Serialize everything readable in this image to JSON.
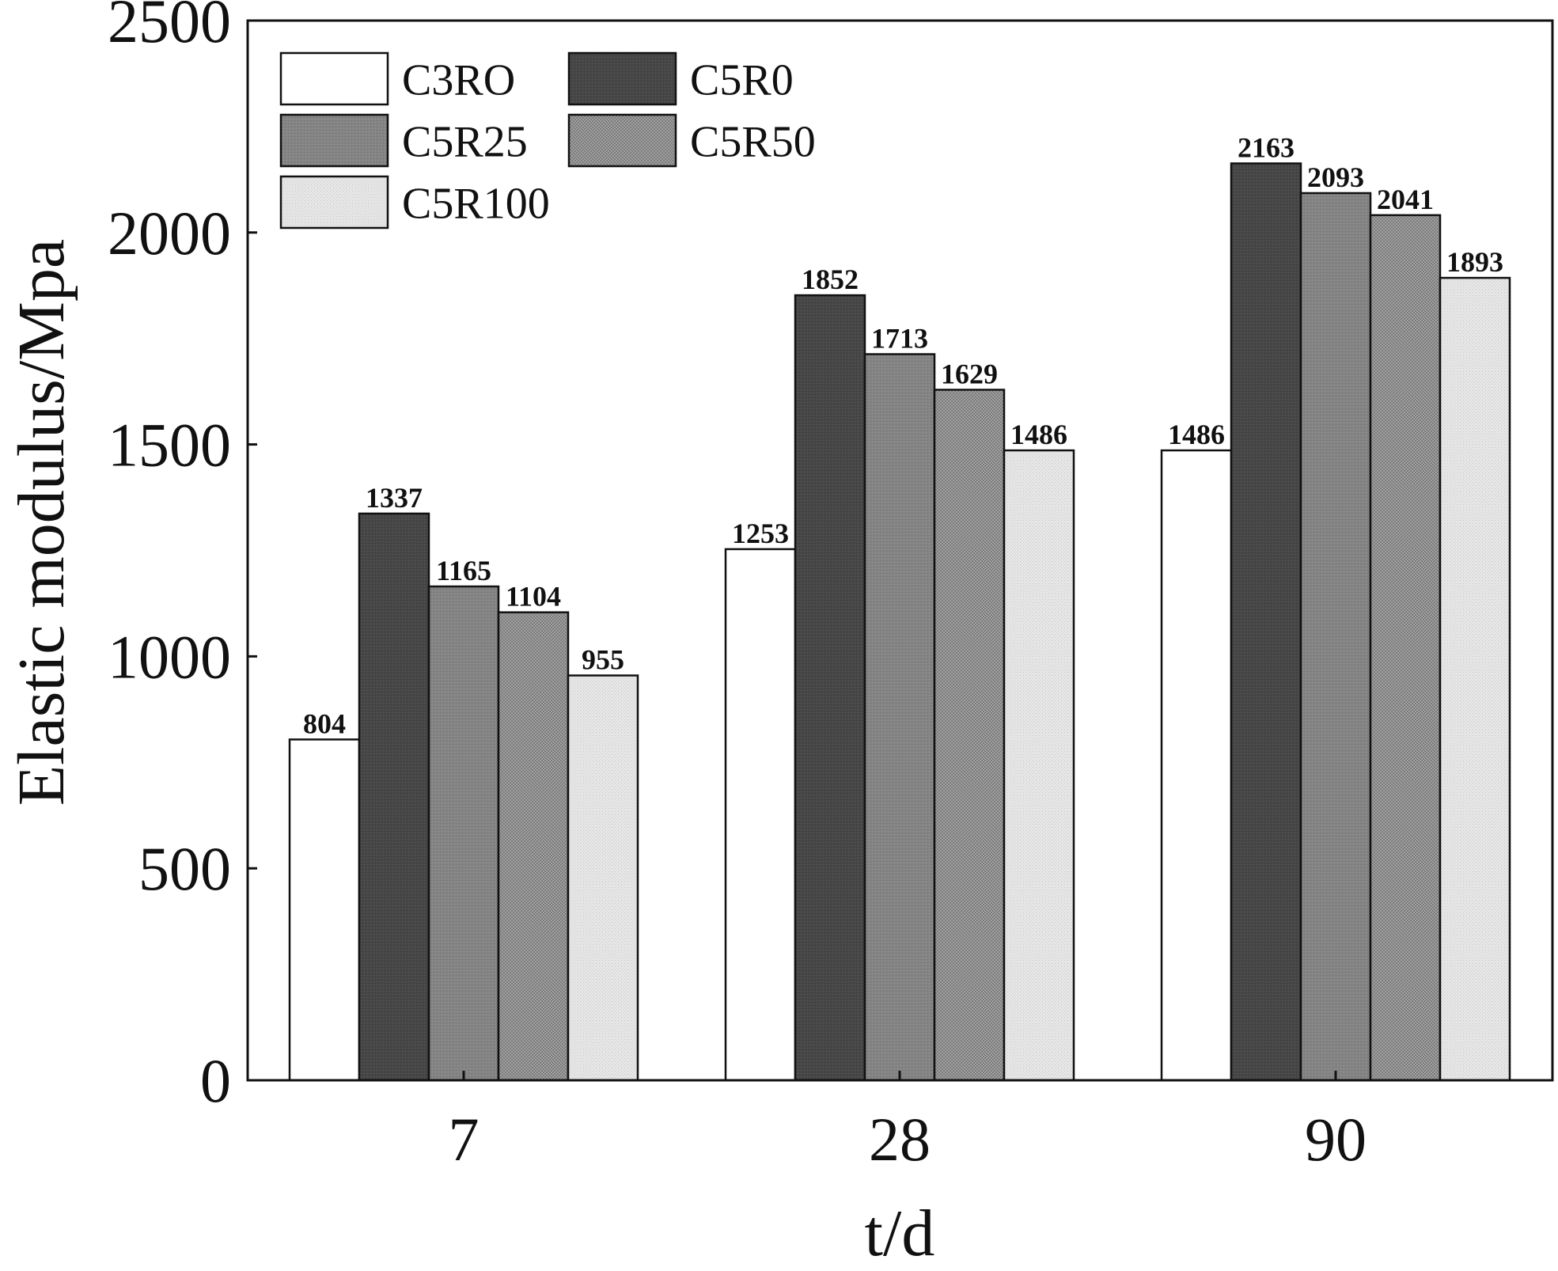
{
  "chart_data": {
    "type": "bar",
    "title": "",
    "xlabel": "t/d",
    "ylabel": "Elastic modulus/Mpa",
    "ylim": [
      0,
      2500
    ],
    "yticks": [
      0,
      500,
      1000,
      1500,
      2000,
      2500
    ],
    "categories": [
      "7",
      "28",
      "90"
    ],
    "grid": false,
    "legend_position": "top-left",
    "legend_columns": 2,
    "series": [
      {
        "name": "C3RO",
        "values": [
          804,
          1253,
          1486
        ],
        "color": "#ffffff",
        "pattern": "none"
      },
      {
        "name": "C5R0",
        "values": [
          1337,
          1852,
          2163
        ],
        "color": "#464646",
        "pattern": "dense-dots"
      },
      {
        "name": "C5R25",
        "values": [
          1165,
          1713,
          2093
        ],
        "color": "#848484",
        "pattern": "dots"
      },
      {
        "name": "C5R50",
        "values": [
          1104,
          1629,
          2041
        ],
        "color": "#9a9a9a",
        "pattern": "crosshatch"
      },
      {
        "name": "C5R100",
        "values": [
          955,
          1486,
          1893
        ],
        "color": "#e2e2e2",
        "pattern": "fine-dots"
      }
    ],
    "data_labels": true
  }
}
